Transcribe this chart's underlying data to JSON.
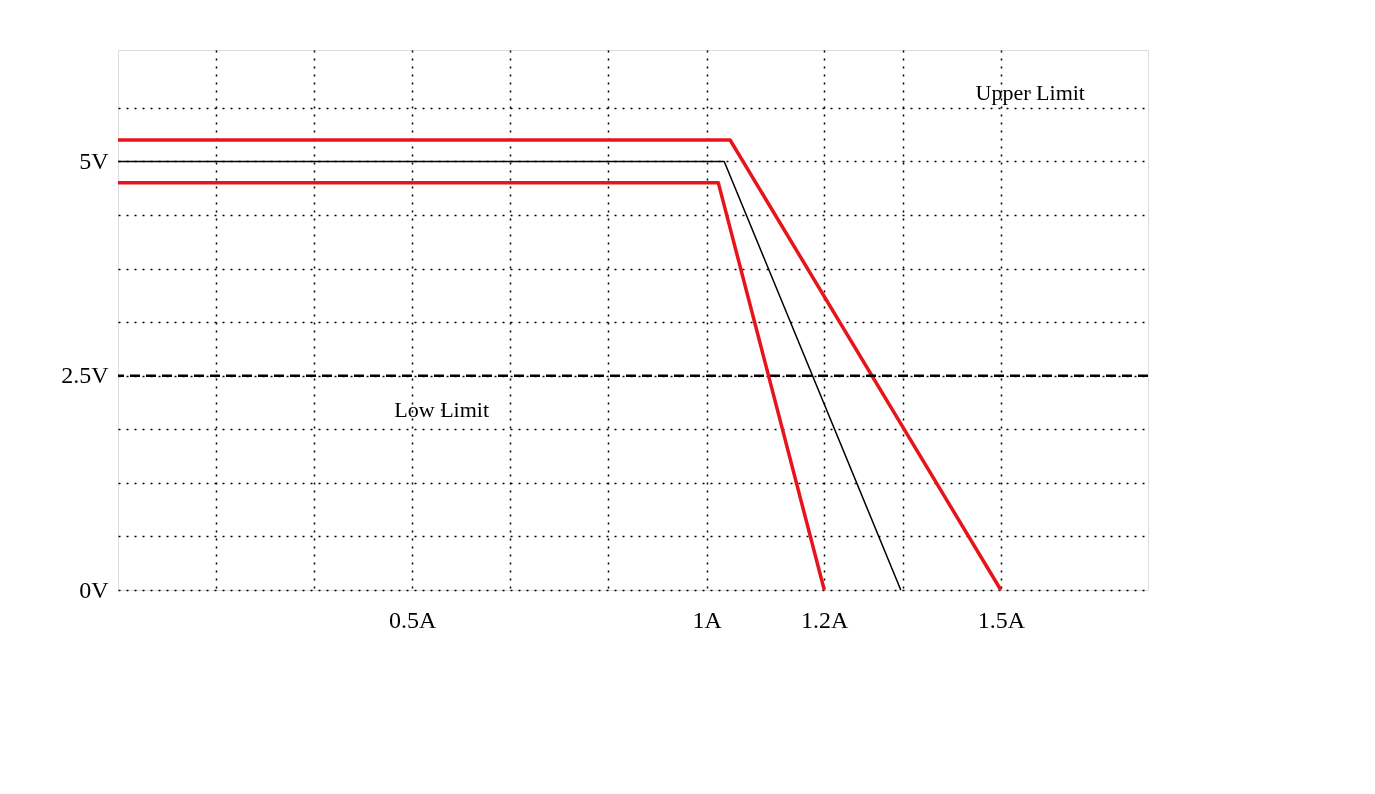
{
  "chart_data": {
    "type": "line",
    "series": [
      {
        "color": "#e8141c",
        "x": [
          0,
          1.04,
          1.5
        ],
        "values": [
          5.25,
          5.25,
          0
        ]
      },
      {
        "color": "#000000",
        "x": [
          0,
          1.03,
          1.33
        ],
        "values": [
          5,
          5,
          0
        ]
      },
      {
        "color": "#e8141c",
        "x": [
          0,
          1.02,
          1.2
        ],
        "values": [
          4.75,
          4.75,
          0
        ]
      }
    ],
    "xlim": [
      0,
      1.75
    ],
    "ylim": [
      0,
      6.3
    ],
    "xticks": [
      {
        "value": 0.1667,
        "label": null
      },
      {
        "value": 0.3333,
        "label": null
      },
      {
        "value": 0.5,
        "label": "0.5A"
      },
      {
        "value": 0.6667,
        "label": null
      },
      {
        "value": 0.8333,
        "label": null
      },
      {
        "value": 1,
        "label": "1A"
      },
      {
        "value": 1.2,
        "label": "1.2A"
      },
      {
        "value": 1.3333,
        "label": null
      },
      {
        "value": 1.5,
        "label": "1.5A"
      }
    ],
    "yticks": [
      {
        "value": 0,
        "label": "0V"
      },
      {
        "value": 0.625,
        "label": null
      },
      {
        "value": 1.25,
        "label": null
      },
      {
        "value": 1.875,
        "label": null
      },
      {
        "value": 2.5,
        "label": "2.5V"
      },
      {
        "value": 3.125,
        "label": null
      },
      {
        "value": 3.75,
        "label": null
      },
      {
        "value": 4.375,
        "label": null
      },
      {
        "value": 5,
        "label": "5V"
      },
      {
        "value": 5.625,
        "label": null
      }
    ],
    "ref_lines": [
      {
        "axis": "y",
        "value": 2.5,
        "label": null,
        "color": "#000000",
        "line_style": "dashed"
      }
    ],
    "annotations": [
      {
        "text": "Upper Limit",
        "x": 1.55,
        "y": 5.8
      },
      {
        "text": "Low Limit",
        "x": 0.55,
        "y": 2.1
      }
    ],
    "grid": true,
    "marker": "none",
    "line_style": "solid"
  }
}
